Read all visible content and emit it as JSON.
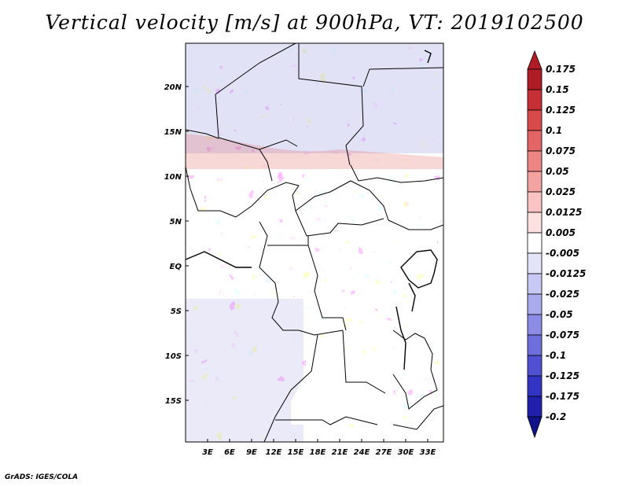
{
  "title": "Vertical velocity [m/s] at 900hPa, VT: 2019102500",
  "credit": "GrADS: IGES/COLA",
  "map": {
    "lat_ticks": [
      "20N",
      "15N",
      "10N",
      "5N",
      "EQ",
      "5S",
      "10S",
      "15S"
    ],
    "lon_ticks": [
      "3E",
      "6E",
      "9E",
      "12E",
      "15E",
      "18E",
      "21E",
      "24E",
      "27E",
      "30E",
      "33E"
    ]
  },
  "colorbar": {
    "labels": [
      "0.175",
      "0.15",
      "0.125",
      "0.1",
      "0.075",
      "0.05",
      "0.025",
      "0.0125",
      "0.005",
      "-0.005",
      "-0.0125",
      "-0.025",
      "-0.05",
      "-0.075",
      "-0.1",
      "-0.125",
      "-0.175",
      "-0.2"
    ],
    "colors": [
      "#b01c26",
      "#c52f35",
      "#d84a4a",
      "#e46565",
      "#ee8585",
      "#f4a3a3",
      "#f9c3c3",
      "#fde0e0",
      "#ffffff",
      "#e4e4f8",
      "#c8c8f4",
      "#aaaaee",
      "#8c8ce6",
      "#6e6edc",
      "#5050d2",
      "#3434c4",
      "#2020ac",
      "#12128a"
    ]
  }
}
